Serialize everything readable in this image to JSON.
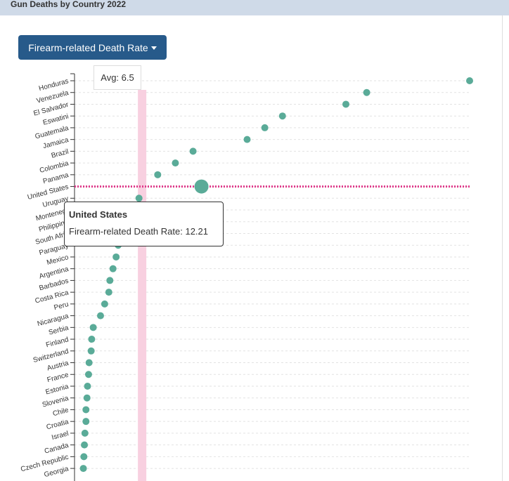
{
  "header": {
    "title": "Gun Deaths by Country 2022"
  },
  "dropdown": {
    "label": "Firearm-related Death Rate",
    "caret_icon": "caret-down-icon"
  },
  "avg_label": "Avg: 6.5",
  "tooltip": {
    "title": "United States",
    "metric": "Firearm-related Death Rate",
    "value": "12.21"
  },
  "colors": {
    "point": "#5aab98",
    "highlight_line": "#e0388a",
    "avg_band": "#f8d0e0",
    "button": "#275a8a",
    "header": "#cfdae8"
  },
  "chart_data": {
    "type": "scatter",
    "title": "Gun Deaths by Country 2022",
    "x_metric": "Firearm-related Death Rate",
    "x_range": [
      0,
      38
    ],
    "average": 6.5,
    "highlighted": "United States",
    "categories": [
      "Honduras",
      "Venezuela",
      "El Salvador",
      "Eswatini",
      "Guatemala",
      "Jamaica",
      "Brazil",
      "Colombia",
      "Panama",
      "United States",
      "Uruguay",
      "Montenegro",
      "Philippines",
      "South Africa",
      "Paraguay",
      "Mexico",
      "Argentina",
      "Barbados",
      "Costa Rica",
      "Peru",
      "Nicaragua",
      "Serbia",
      "Finland",
      "Switzerland",
      "Austria",
      "France",
      "Estonia",
      "Slovenia",
      "Chile",
      "Croatia",
      "Israel",
      "Canada",
      "Czech Republic",
      "Georgia"
    ],
    "tick_labels": [
      "Honduras",
      "Venezuela",
      "El Salvador",
      "Eswatini",
      "Guatemala",
      "Jamaica",
      "Brazil",
      "Colombia",
      "Panama",
      "United States",
      "Uruguay",
      "Montenegr",
      "Philippine",
      "South Afric",
      "Paraguay",
      "Mexico",
      "Argentina",
      "Barbados",
      "Costa Rica",
      "Peru",
      "Nicaragua",
      "Serbia",
      "Finland",
      "Switzerland",
      "Austria",
      "France",
      "Estonia",
      "Slovenia",
      "Chile",
      "Croatia",
      "Israel",
      "Canada",
      "Czech Republic",
      "Georgia"
    ],
    "values": [
      38.0,
      28.1,
      26.1,
      20.0,
      18.3,
      16.6,
      11.4,
      9.7,
      8.0,
      12.21,
      6.2,
      5.6,
      5.2,
      4.4,
      4.2,
      4.0,
      3.7,
      3.4,
      3.3,
      2.9,
      2.5,
      1.8,
      1.65,
      1.6,
      1.4,
      1.35,
      1.25,
      1.2,
      1.1,
      1.1,
      1.0,
      0.95,
      0.9,
      0.85
    ],
    "grid": true,
    "legend": "none"
  }
}
